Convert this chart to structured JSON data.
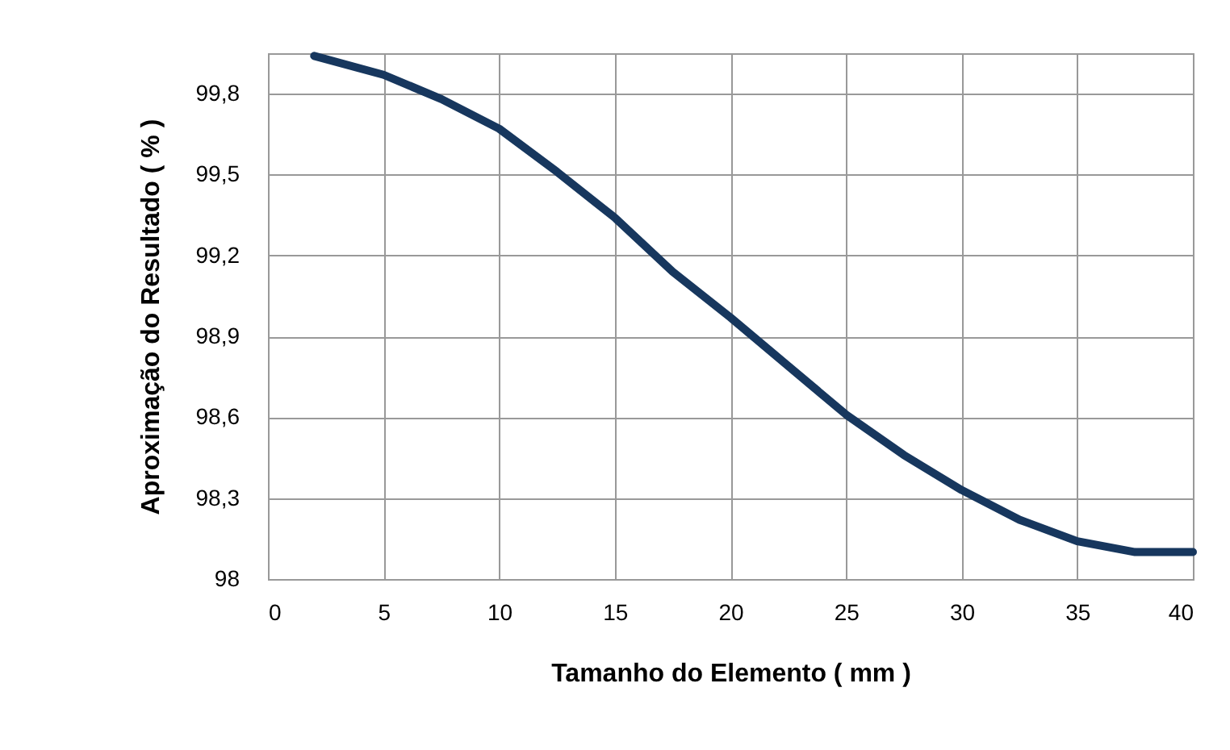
{
  "chart_data": {
    "type": "line",
    "xlabel": "Tamanho do Elemento ( mm )",
    "ylabel": "Aproximação do Resultado ( % )",
    "series": [
      {
        "color": "#17375e",
        "x": [
          2,
          5,
          7.5,
          10,
          12.5,
          15,
          17.5,
          20,
          22.5,
          25,
          27.5,
          30,
          32.5,
          35,
          37.5,
          40
        ],
        "values": [
          99.94,
          99.87,
          99.78,
          99.67,
          99.51,
          99.34,
          99.14,
          98.97,
          98.79,
          98.61,
          98.46,
          98.33,
          98.22,
          98.14,
          98.1,
          98.1
        ]
      }
    ],
    "xlim": [
      0,
      40
    ],
    "xticks": [
      0,
      5,
      10,
      15,
      20,
      25,
      30,
      35,
      40
    ],
    "ylim": [
      98,
      99.95
    ],
    "yticks": [
      98,
      {
        "value": 98.3,
        "label": "98,3"
      },
      {
        "value": 98.6,
        "label": "98,6"
      },
      {
        "value": 98.9,
        "label": "98,9"
      },
      {
        "value": 99.2,
        "label": "99,2"
      },
      {
        "value": 99.5,
        "label": "99,5"
      },
      {
        "value": 99.8,
        "label": "99,8"
      }
    ],
    "grid": true,
    "marker": "none",
    "line_style": "solid"
  }
}
